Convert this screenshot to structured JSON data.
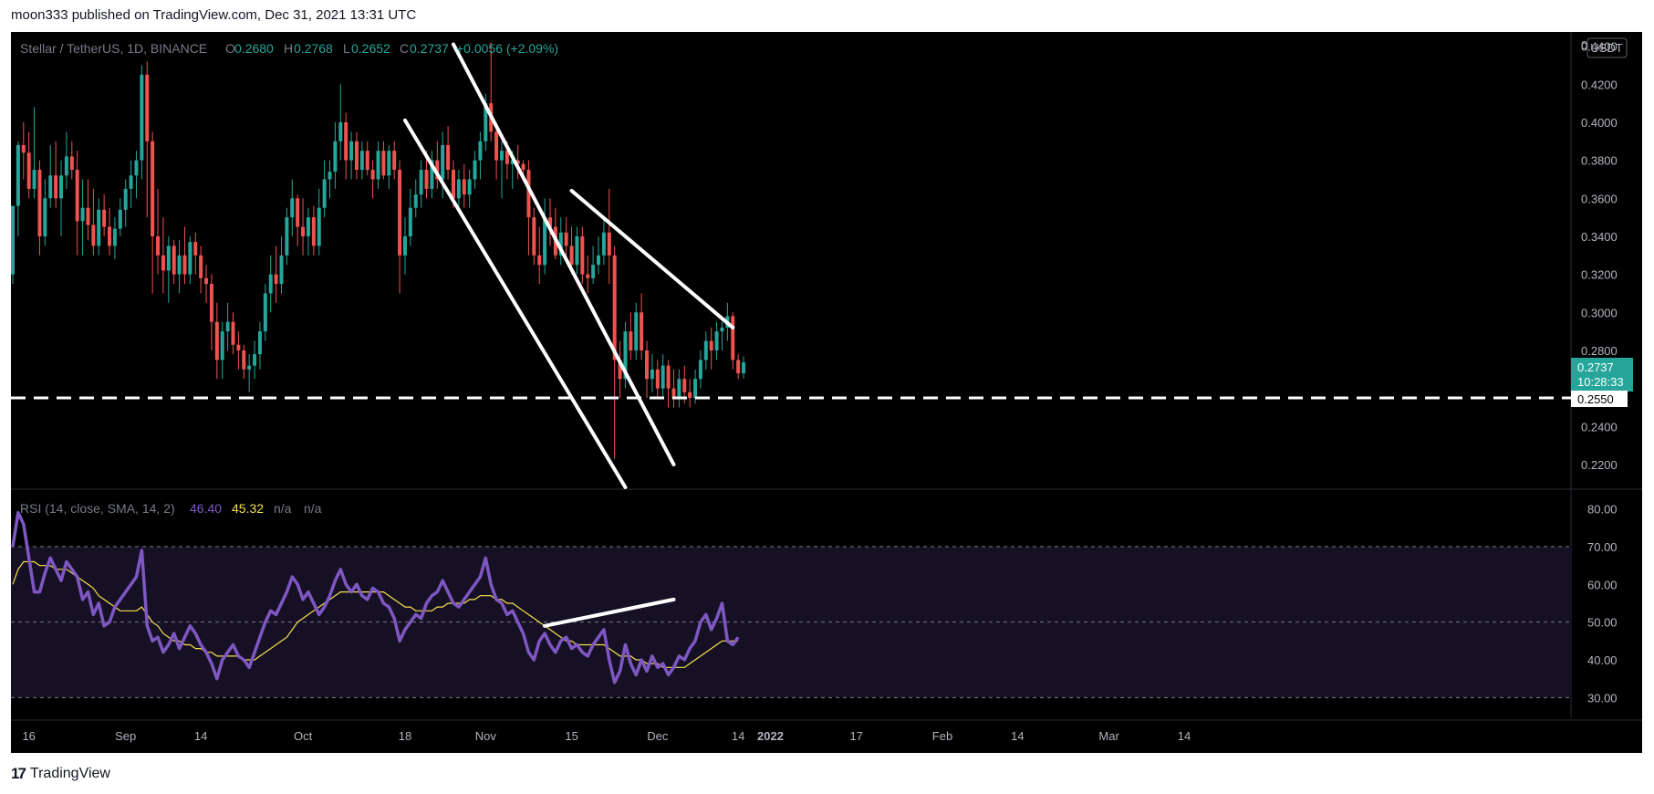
{
  "header": {
    "publisher": "moon333 published on TradingView.com, Dec 31, 2021 13:31 UTC"
  },
  "footer": {
    "brand": "TradingView",
    "logo_text": "17"
  },
  "colors": {
    "up": "#26a69a",
    "down": "#ef5350",
    "rsi": "#7e57c2",
    "rsi_ma": "#f5e04d",
    "annotation": "#ffffff"
  },
  "legend": {
    "pair": "Stellar / TetherUS, 1D, BINANCE",
    "o_label": "O",
    "o_value": "0.2680",
    "h_label": "H",
    "h_value": "0.2768",
    "l_label": "L",
    "l_value": "0.2652",
    "c_label": "C",
    "c_value": "0.2737",
    "change": "+0.0056 (+2.09%)"
  },
  "rsi_legend": {
    "label": "RSI (14, close, SMA, 14, 2)",
    "rsi_value": "46.40",
    "ma_value": "45.32",
    "na1": "n/a",
    "na2": "n/a"
  },
  "price_axis": {
    "currency": "USDT",
    "top_partial": "0",
    "ticks": [
      "0.4400",
      "0.4200",
      "0.4000",
      "0.3800",
      "0.3600",
      "0.3400",
      "0.3200",
      "0.3000",
      "0.2800",
      "0.2400",
      "0.2200"
    ]
  },
  "last_price": {
    "value": "0.2737",
    "countdown": "10:28:33"
  },
  "level_label": "0.2550",
  "rsi_axis": {
    "ticks": [
      "80.00",
      "70.00",
      "60.00",
      "50.00",
      "40.00",
      "30.00"
    ]
  },
  "time_axis": {
    "labels": [
      "16",
      "Sep",
      "14",
      "Oct",
      "18",
      "Nov",
      "15",
      "Dec",
      "14",
      "2022",
      "17",
      "Feb",
      "14",
      "Mar",
      "14"
    ]
  },
  "chart_data": {
    "type": "candlestick",
    "title": "Stellar / TetherUS, 1D, BINANCE",
    "ylim": [
      0.2075,
      0.4475
    ],
    "horizontal_level": 0.255,
    "ohlc_fields": [
      "open",
      "high",
      "low",
      "close"
    ],
    "candles": [
      [
        0.32,
        0.355,
        0.315,
        0.356
      ],
      [
        0.356,
        0.39,
        0.34,
        0.388
      ],
      [
        0.388,
        0.4,
        0.37,
        0.384
      ],
      [
        0.384,
        0.395,
        0.36,
        0.365
      ],
      [
        0.365,
        0.408,
        0.36,
        0.375
      ],
      [
        0.375,
        0.38,
        0.33,
        0.34
      ],
      [
        0.34,
        0.37,
        0.335,
        0.36
      ],
      [
        0.36,
        0.388,
        0.355,
        0.372
      ],
      [
        0.372,
        0.39,
        0.355,
        0.36
      ],
      [
        0.36,
        0.38,
        0.34,
        0.372
      ],
      [
        0.372,
        0.395,
        0.365,
        0.382
      ],
      [
        0.382,
        0.39,
        0.37,
        0.375
      ],
      [
        0.375,
        0.385,
        0.33,
        0.348
      ],
      [
        0.348,
        0.37,
        0.33,
        0.355
      ],
      [
        0.355,
        0.37,
        0.338,
        0.346
      ],
      [
        0.346,
        0.365,
        0.33,
        0.335
      ],
      [
        0.335,
        0.36,
        0.33,
        0.354
      ],
      [
        0.354,
        0.362,
        0.34,
        0.345
      ],
      [
        0.345,
        0.355,
        0.33,
        0.335
      ],
      [
        0.335,
        0.35,
        0.328,
        0.344
      ],
      [
        0.344,
        0.36,
        0.34,
        0.354
      ],
      [
        0.354,
        0.37,
        0.345,
        0.365
      ],
      [
        0.365,
        0.38,
        0.355,
        0.372
      ],
      [
        0.372,
        0.385,
        0.36,
        0.38
      ],
      [
        0.38,
        0.43,
        0.37,
        0.425
      ],
      [
        0.425,
        0.432,
        0.35,
        0.39
      ],
      [
        0.39,
        0.395,
        0.31,
        0.34
      ],
      [
        0.34,
        0.365,
        0.32,
        0.33
      ],
      [
        0.33,
        0.35,
        0.31,
        0.322
      ],
      [
        0.322,
        0.34,
        0.305,
        0.335
      ],
      [
        0.335,
        0.338,
        0.315,
        0.32
      ],
      [
        0.32,
        0.338,
        0.31,
        0.33
      ],
      [
        0.33,
        0.345,
        0.315,
        0.32
      ],
      [
        0.32,
        0.34,
        0.315,
        0.337
      ],
      [
        0.337,
        0.342,
        0.32,
        0.33
      ],
      [
        0.33,
        0.335,
        0.31,
        0.318
      ],
      [
        0.318,
        0.325,
        0.305,
        0.315
      ],
      [
        0.315,
        0.32,
        0.28,
        0.295
      ],
      [
        0.295,
        0.305,
        0.265,
        0.275
      ],
      [
        0.275,
        0.295,
        0.265,
        0.29
      ],
      [
        0.29,
        0.305,
        0.28,
        0.295
      ],
      [
        0.295,
        0.3,
        0.278,
        0.283
      ],
      [
        0.283,
        0.29,
        0.27,
        0.28
      ],
      [
        0.28,
        0.283,
        0.265,
        0.27
      ],
      [
        0.27,
        0.278,
        0.258,
        0.272
      ],
      [
        0.272,
        0.285,
        0.265,
        0.278
      ],
      [
        0.278,
        0.295,
        0.27,
        0.29
      ],
      [
        0.29,
        0.315,
        0.285,
        0.31
      ],
      [
        0.31,
        0.33,
        0.3,
        0.32
      ],
      [
        0.32,
        0.335,
        0.305,
        0.315
      ],
      [
        0.315,
        0.34,
        0.31,
        0.33
      ],
      [
        0.33,
        0.355,
        0.325,
        0.35
      ],
      [
        0.35,
        0.37,
        0.34,
        0.36
      ],
      [
        0.36,
        0.362,
        0.335,
        0.345
      ],
      [
        0.345,
        0.36,
        0.33,
        0.34
      ],
      [
        0.34,
        0.355,
        0.33,
        0.35
      ],
      [
        0.35,
        0.356,
        0.33,
        0.335
      ],
      [
        0.335,
        0.365,
        0.33,
        0.355
      ],
      [
        0.355,
        0.38,
        0.35,
        0.37
      ],
      [
        0.37,
        0.38,
        0.36,
        0.374
      ],
      [
        0.374,
        0.4,
        0.365,
        0.39
      ],
      [
        0.39,
        0.42,
        0.38,
        0.4
      ],
      [
        0.4,
        0.405,
        0.37,
        0.38
      ],
      [
        0.38,
        0.395,
        0.37,
        0.39
      ],
      [
        0.39,
        0.395,
        0.37,
        0.375
      ],
      [
        0.375,
        0.39,
        0.37,
        0.385
      ],
      [
        0.385,
        0.39,
        0.372,
        0.375
      ],
      [
        0.375,
        0.38,
        0.36,
        0.37
      ],
      [
        0.37,
        0.39,
        0.365,
        0.385
      ],
      [
        0.385,
        0.39,
        0.37,
        0.372
      ],
      [
        0.372,
        0.388,
        0.365,
        0.385
      ],
      [
        0.385,
        0.39,
        0.37,
        0.375
      ],
      [
        0.375,
        0.38,
        0.31,
        0.33
      ],
      [
        0.33,
        0.35,
        0.32,
        0.34
      ],
      [
        0.34,
        0.365,
        0.335,
        0.355
      ],
      [
        0.355,
        0.37,
        0.35,
        0.362
      ],
      [
        0.362,
        0.38,
        0.355,
        0.375
      ],
      [
        0.375,
        0.385,
        0.36,
        0.365
      ],
      [
        0.365,
        0.385,
        0.36,
        0.38
      ],
      [
        0.38,
        0.39,
        0.365,
        0.37
      ],
      [
        0.37,
        0.395,
        0.36,
        0.388
      ],
      [
        0.388,
        0.398,
        0.37,
        0.375
      ],
      [
        0.375,
        0.38,
        0.355,
        0.36
      ],
      [
        0.36,
        0.375,
        0.355,
        0.37
      ],
      [
        0.37,
        0.378,
        0.355,
        0.362
      ],
      [
        0.362,
        0.375,
        0.355,
        0.37
      ],
      [
        0.37,
        0.385,
        0.365,
        0.38
      ],
      [
        0.38,
        0.395,
        0.37,
        0.39
      ],
      [
        0.39,
        0.415,
        0.385,
        0.41
      ],
      [
        0.41,
        0.442,
        0.39,
        0.395
      ],
      [
        0.395,
        0.4,
        0.37,
        0.38
      ],
      [
        0.38,
        0.39,
        0.36,
        0.385
      ],
      [
        0.385,
        0.39,
        0.37,
        0.378
      ],
      [
        0.378,
        0.385,
        0.365,
        0.38
      ],
      [
        0.38,
        0.388,
        0.37,
        0.378
      ],
      [
        0.378,
        0.38,
        0.37,
        0.375
      ],
      [
        0.375,
        0.38,
        0.33,
        0.35
      ],
      [
        0.35,
        0.355,
        0.325,
        0.33
      ],
      [
        0.33,
        0.345,
        0.315,
        0.325
      ],
      [
        0.325,
        0.36,
        0.32,
        0.35
      ],
      [
        0.35,
        0.36,
        0.335,
        0.345
      ],
      [
        0.345,
        0.355,
        0.328,
        0.33
      ],
      [
        0.33,
        0.35,
        0.325,
        0.342
      ],
      [
        0.342,
        0.35,
        0.328,
        0.335
      ],
      [
        0.335,
        0.345,
        0.32,
        0.325
      ],
      [
        0.325,
        0.345,
        0.32,
        0.34
      ],
      [
        0.34,
        0.345,
        0.315,
        0.32
      ],
      [
        0.32,
        0.33,
        0.31,
        0.318
      ],
      [
        0.318,
        0.335,
        0.315,
        0.325
      ],
      [
        0.325,
        0.34,
        0.32,
        0.33
      ],
      [
        0.33,
        0.35,
        0.325,
        0.342
      ],
      [
        0.342,
        0.365,
        0.315,
        0.33
      ],
      [
        0.33,
        0.335,
        0.223,
        0.275
      ],
      [
        0.275,
        0.285,
        0.255,
        0.265
      ],
      [
        0.265,
        0.295,
        0.26,
        0.29
      ],
      [
        0.29,
        0.3,
        0.275,
        0.28
      ],
      [
        0.28,
        0.305,
        0.275,
        0.3
      ],
      [
        0.3,
        0.31,
        0.275,
        0.28
      ],
      [
        0.28,
        0.285,
        0.255,
        0.265
      ],
      [
        0.265,
        0.278,
        0.258,
        0.27
      ],
      [
        0.27,
        0.275,
        0.255,
        0.26
      ],
      [
        0.26,
        0.278,
        0.255,
        0.272
      ],
      [
        0.272,
        0.275,
        0.25,
        0.26
      ],
      [
        0.26,
        0.27,
        0.25,
        0.255
      ],
      [
        0.255,
        0.27,
        0.25,
        0.265
      ],
      [
        0.265,
        0.272,
        0.252,
        0.258
      ],
      [
        0.258,
        0.265,
        0.25,
        0.255
      ],
      [
        0.255,
        0.27,
        0.252,
        0.265
      ],
      [
        0.265,
        0.28,
        0.26,
        0.275
      ],
      [
        0.275,
        0.29,
        0.27,
        0.285
      ],
      [
        0.285,
        0.292,
        0.27,
        0.28
      ],
      [
        0.28,
        0.295,
        0.275,
        0.29
      ],
      [
        0.29,
        0.295,
        0.28,
        0.292
      ],
      [
        0.292,
        0.305,
        0.285,
        0.298
      ],
      [
        0.298,
        0.3,
        0.27,
        0.275
      ],
      [
        0.275,
        0.278,
        0.265,
        0.268
      ],
      [
        0.268,
        0.2768,
        0.2652,
        0.2737
      ]
    ],
    "rsi": {
      "name": "RSI (14, close, SMA, 14, 2)",
      "ylim": [
        25,
        85
      ],
      "bands": [
        30,
        70
      ],
      "midline": 50,
      "values": [
        70,
        79,
        76,
        67,
        58,
        58,
        63,
        67,
        64,
        61,
        66,
        64,
        62,
        56,
        58,
        52,
        55,
        49,
        50,
        54,
        56,
        58,
        60,
        62,
        69,
        49,
        45,
        46,
        42,
        44,
        47,
        43,
        46,
        49,
        47,
        44,
        42,
        39,
        35,
        40,
        42,
        44,
        41,
        40,
        38,
        42,
        46,
        50,
        53,
        52,
        55,
        58,
        62,
        60,
        56,
        58,
        55,
        52,
        54,
        57,
        61,
        64,
        60,
        58,
        60,
        57,
        56,
        59,
        58,
        55,
        54,
        51,
        45,
        48,
        50,
        52,
        51,
        55,
        57,
        58,
        61,
        58,
        55,
        54,
        56,
        58,
        60,
        62,
        67,
        60,
        56,
        55,
        52,
        53,
        50,
        47,
        42,
        40,
        45,
        47,
        44,
        42,
        45,
        46,
        43,
        44,
        42,
        41,
        44,
        46,
        48,
        40,
        34,
        37,
        44,
        39,
        36,
        40,
        37,
        41,
        38,
        39,
        36,
        38,
        41,
        40,
        43,
        45,
        50,
        52,
        48,
        51,
        55,
        45,
        44,
        46
      ],
      "ma_values": [
        60,
        64,
        66,
        66,
        66,
        65,
        65,
        65,
        64,
        64,
        64,
        63,
        62,
        61,
        60,
        59,
        57,
        56,
        55,
        54,
        53,
        53,
        53,
        53,
        54,
        52,
        50,
        49,
        47,
        46,
        45,
        45,
        44,
        44,
        43,
        43,
        42,
        42,
        41,
        41,
        41,
        41,
        41,
        40,
        40,
        40,
        41,
        42,
        43,
        44,
        45,
        46,
        48,
        50,
        51,
        52,
        53,
        54,
        55,
        56,
        57,
        58,
        58,
        58,
        58,
        58,
        58,
        58,
        58,
        58,
        57,
        56,
        55,
        54,
        54,
        53,
        53,
        53,
        53,
        54,
        54,
        55,
        55,
        55,
        55,
        56,
        56,
        57,
        57,
        57,
        56,
        56,
        55,
        55,
        54,
        53,
        52,
        51,
        50,
        49,
        48,
        47,
        46,
        45,
        45,
        44,
        44,
        44,
        44,
        44,
        44,
        43,
        42,
        41,
        41,
        41,
        40,
        40,
        39,
        39,
        39,
        38,
        38,
        38,
        38,
        38,
        39,
        40,
        41,
        42,
        43,
        44,
        45,
        45,
        45,
        45
      ]
    },
    "annotations": [
      {
        "type": "trendline",
        "name": "channel-upper",
        "from": [
          82,
          0.441
        ],
        "to": [
          123,
          0.22
        ]
      },
      {
        "type": "trendline",
        "name": "channel-lower",
        "from": [
          73,
          0.401
        ],
        "to": [
          114,
          0.208
        ]
      },
      {
        "type": "trendline",
        "name": "resistance",
        "from": [
          104,
          0.364
        ],
        "to": [
          134,
          0.292
        ]
      },
      {
        "type": "trendline",
        "name": "rsi-divergence",
        "from": [
          99,
          49
        ],
        "to": [
          123,
          56
        ]
      }
    ]
  }
}
